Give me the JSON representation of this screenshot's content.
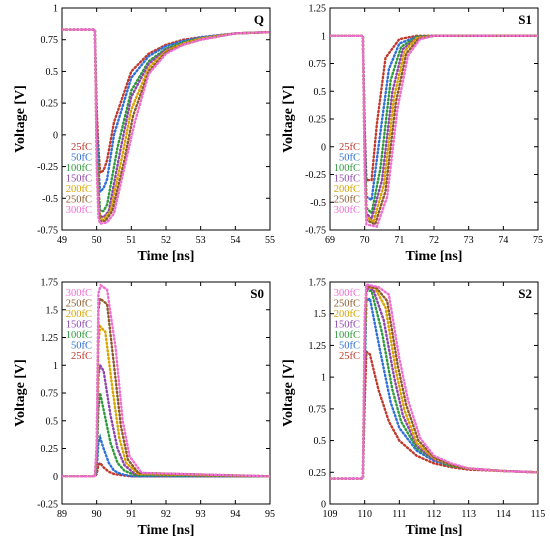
{
  "legend_colors": {
    "25fC": "#c0392b",
    "50fC": "#2e6fd8",
    "100fC": "#2e9a3a",
    "150fC": "#8e44ad",
    "200fC": "#d9a400",
    "250fC": "#8b5a2b",
    "300fC": "#f06ed2"
  },
  "chart_data": [
    {
      "type": "line",
      "panel_label": "Q",
      "xlabel": "Time [ns]",
      "ylabel": "Voltage [V]",
      "xlim": [
        49,
        55
      ],
      "ylim": [
        -0.75,
        1
      ],
      "xticks": [
        "49",
        "50",
        "51",
        "52",
        "53",
        "54",
        "55"
      ],
      "yticks": [
        "-0.75",
        "-0.5",
        "-0.25",
        "0",
        "0.25",
        "0.5",
        "0.75",
        "1"
      ],
      "legend_order": [
        "25fC",
        "50fC",
        "100fC",
        "150fC",
        "200fC",
        "250fC",
        "300fC"
      ],
      "legend_position": "middle-left",
      "series": [
        {
          "name": "25fC",
          "x": [
            49,
            49.95,
            50,
            50.05,
            50.1,
            50.2,
            50.3,
            50.5,
            51,
            51.5,
            52,
            52.5,
            53,
            54,
            55
          ],
          "y": [
            0.83,
            0.83,
            0.2,
            -0.1,
            -0.3,
            -0.28,
            -0.2,
            0.1,
            0.5,
            0.64,
            0.71,
            0.75,
            0.77,
            0.8,
            0.81
          ]
        },
        {
          "name": "50fC",
          "x": [
            49,
            49.95,
            50,
            50.05,
            50.1,
            50.2,
            50.3,
            50.5,
            51,
            51.5,
            52,
            52.5,
            53,
            54,
            55
          ],
          "y": [
            0.83,
            0.83,
            0.1,
            -0.25,
            -0.45,
            -0.42,
            -0.35,
            0.0,
            0.45,
            0.62,
            0.7,
            0.74,
            0.77,
            0.8,
            0.81
          ]
        },
        {
          "name": "100fC",
          "x": [
            49,
            49.95,
            50,
            50.05,
            50.1,
            50.2,
            50.3,
            50.6,
            51,
            51.5,
            52,
            52.5,
            53,
            54,
            55
          ],
          "y": [
            0.83,
            0.83,
            0.0,
            -0.4,
            -0.6,
            -0.6,
            -0.55,
            -0.1,
            0.35,
            0.58,
            0.68,
            0.73,
            0.76,
            0.8,
            0.81
          ]
        },
        {
          "name": "150fC",
          "x": [
            49,
            49.95,
            50,
            50.05,
            50.1,
            50.2,
            50.35,
            50.7,
            51,
            51.5,
            52,
            52.5,
            53,
            54,
            55
          ],
          "y": [
            0.83,
            0.83,
            -0.1,
            -0.5,
            -0.64,
            -0.65,
            -0.6,
            -0.1,
            0.3,
            0.56,
            0.67,
            0.72,
            0.76,
            0.8,
            0.81
          ]
        },
        {
          "name": "200fC",
          "x": [
            49,
            49.95,
            50,
            50.05,
            50.1,
            50.2,
            50.4,
            50.75,
            51,
            51.5,
            52,
            52.5,
            53,
            54,
            55
          ],
          "y": [
            0.83,
            0.83,
            -0.15,
            -0.55,
            -0.66,
            -0.67,
            -0.6,
            -0.15,
            0.2,
            0.53,
            0.66,
            0.72,
            0.76,
            0.8,
            0.81
          ]
        },
        {
          "name": "250fC",
          "x": [
            49,
            49.95,
            50,
            50.05,
            50.1,
            50.25,
            50.45,
            50.8,
            51.05,
            51.5,
            52,
            52.5,
            53,
            54,
            55
          ],
          "y": [
            0.83,
            0.83,
            -0.2,
            -0.6,
            -0.68,
            -0.68,
            -0.6,
            -0.2,
            0.15,
            0.5,
            0.65,
            0.71,
            0.75,
            0.8,
            0.81
          ]
        },
        {
          "name": "300fC",
          "x": [
            49,
            49.95,
            50,
            50.05,
            50.1,
            50.3,
            50.5,
            50.85,
            51.1,
            51.5,
            52,
            52.5,
            53,
            54,
            55
          ],
          "y": [
            0.83,
            0.83,
            -0.25,
            -0.65,
            -0.7,
            -0.69,
            -0.62,
            -0.2,
            0.1,
            0.48,
            0.64,
            0.71,
            0.75,
            0.8,
            0.81
          ]
        }
      ]
    },
    {
      "type": "line",
      "panel_label": "S1",
      "xlabel": "Time [ns]",
      "ylabel": "Voltage [V]",
      "xlim": [
        69,
        75
      ],
      "ylim": [
        -0.75,
        1.25
      ],
      "xticks": [
        "69",
        "70",
        "71",
        "72",
        "73",
        "74",
        "75"
      ],
      "yticks": [
        "-0.75",
        "-0.5",
        "-0.25",
        "0",
        "0.25",
        "0.5",
        "0.75",
        "1",
        "1.25"
      ],
      "legend_order": [
        "25fC",
        "50fC",
        "100fC",
        "150fC",
        "200fC",
        "250fC",
        "300fC"
      ],
      "legend_position": "bottom-left",
      "series": [
        {
          "name": "25fC",
          "x": [
            69,
            69.95,
            70,
            70.05,
            70.2,
            70.35,
            70.6,
            71,
            71.5,
            72,
            75
          ],
          "y": [
            1.0,
            1.0,
            0.2,
            -0.3,
            -0.3,
            0.2,
            0.8,
            0.97,
            1.0,
            1.0,
            1.0
          ]
        },
        {
          "name": "50fC",
          "x": [
            69,
            69.95,
            70,
            70.05,
            70.2,
            70.4,
            70.7,
            71,
            71.5,
            72,
            75
          ],
          "y": [
            1.0,
            1.0,
            0.1,
            -0.45,
            -0.48,
            0.0,
            0.7,
            0.93,
            0.99,
            1.0,
            1.0
          ]
        },
        {
          "name": "100fC",
          "x": [
            69,
            69.95,
            70,
            70.05,
            70.2,
            70.45,
            70.75,
            71.05,
            71.5,
            72,
            75
          ],
          "y": [
            1.0,
            1.0,
            0.0,
            -0.55,
            -0.6,
            -0.2,
            0.6,
            0.9,
            0.99,
            1.0,
            1.0
          ]
        },
        {
          "name": "150fC",
          "x": [
            69,
            69.95,
            70,
            70.05,
            70.2,
            70.5,
            70.8,
            71.1,
            71.5,
            72,
            75
          ],
          "y": [
            1.0,
            1.0,
            -0.1,
            -0.6,
            -0.65,
            -0.3,
            0.5,
            0.88,
            0.98,
            1.0,
            1.0
          ]
        },
        {
          "name": "200fC",
          "x": [
            69,
            69.95,
            70,
            70.05,
            70.25,
            70.55,
            70.85,
            71.15,
            71.5,
            72,
            75
          ],
          "y": [
            1.0,
            1.0,
            -0.15,
            -0.63,
            -0.68,
            -0.35,
            0.45,
            0.86,
            0.98,
            1.0,
            1.0
          ]
        },
        {
          "name": "250fC",
          "x": [
            69,
            69.95,
            70,
            70.05,
            70.3,
            70.6,
            70.9,
            71.2,
            71.55,
            72,
            75
          ],
          "y": [
            1.0,
            1.0,
            -0.2,
            -0.66,
            -0.7,
            -0.4,
            0.4,
            0.84,
            0.97,
            1.0,
            1.0
          ]
        },
        {
          "name": "300fC",
          "x": [
            69,
            69.95,
            70,
            70.05,
            70.35,
            70.65,
            70.95,
            71.25,
            71.6,
            72,
            75
          ],
          "y": [
            1.0,
            1.0,
            -0.25,
            -0.7,
            -0.72,
            -0.45,
            0.35,
            0.82,
            0.97,
            1.0,
            1.0
          ]
        }
      ]
    },
    {
      "type": "line",
      "panel_label": "S0",
      "xlabel": "Time [ns]",
      "ylabel": "Voltage [V]",
      "xlim": [
        89,
        95
      ],
      "ylim": [
        -0.25,
        1.75
      ],
      "xticks": [
        "89",
        "90",
        "91",
        "92",
        "93",
        "94",
        "95"
      ],
      "yticks": [
        "-0.25",
        "0",
        "0.25",
        "0.5",
        "0.75",
        "1",
        "1.25",
        "1.5",
        "1.75"
      ],
      "legend_order": [
        "300fC",
        "250fC",
        "200fC",
        "150fC",
        "100fC",
        "50fC",
        "25fC"
      ],
      "legend_position": "top-left",
      "series": [
        {
          "name": "25fC",
          "x": [
            89,
            89.95,
            90,
            90.05,
            90.1,
            90.2,
            90.35,
            90.5,
            90.7,
            91,
            95
          ],
          "y": [
            0.0,
            0.0,
            0.02,
            0.1,
            0.12,
            0.08,
            0.04,
            0.02,
            0.01,
            0.0,
            0.0
          ]
        },
        {
          "name": "50fC",
          "x": [
            89,
            89.95,
            90,
            90.05,
            90.1,
            90.2,
            90.35,
            90.5,
            90.7,
            91,
            95
          ],
          "y": [
            0.0,
            0.0,
            0.05,
            0.3,
            0.35,
            0.25,
            0.12,
            0.05,
            0.02,
            0.0,
            0.0
          ]
        },
        {
          "name": "100fC",
          "x": [
            89,
            89.95,
            90,
            90.05,
            90.1,
            90.2,
            90.4,
            90.6,
            90.8,
            91.1,
            95
          ],
          "y": [
            0.0,
            0.0,
            0.1,
            0.6,
            0.75,
            0.6,
            0.3,
            0.12,
            0.05,
            0.01,
            0.0
          ]
        },
        {
          "name": "150fC",
          "x": [
            89,
            89.95,
            90,
            90.05,
            90.1,
            90.2,
            90.4,
            90.6,
            90.8,
            91.1,
            95
          ],
          "y": [
            0.0,
            0.0,
            0.15,
            0.9,
            1.0,
            0.95,
            0.55,
            0.25,
            0.1,
            0.02,
            0.0
          ]
        },
        {
          "name": "200fC",
          "x": [
            89,
            89.95,
            90,
            90.05,
            90.1,
            90.25,
            90.45,
            90.65,
            90.85,
            91.2,
            95
          ],
          "y": [
            0.0,
            0.0,
            0.2,
            1.2,
            1.35,
            1.3,
            0.8,
            0.35,
            0.12,
            0.02,
            0.0
          ]
        },
        {
          "name": "250fC",
          "x": [
            89,
            89.95,
            90,
            90.05,
            90.1,
            90.3,
            90.5,
            90.7,
            90.9,
            91.2,
            95
          ],
          "y": [
            0.0,
            0.0,
            0.25,
            1.5,
            1.6,
            1.55,
            1.0,
            0.45,
            0.15,
            0.03,
            0.0
          ]
        },
        {
          "name": "300fC",
          "x": [
            89,
            89.95,
            90,
            90.05,
            90.12,
            90.3,
            90.55,
            90.75,
            90.95,
            91.3,
            95
          ],
          "y": [
            0.0,
            0.0,
            0.3,
            1.65,
            1.72,
            1.68,
            1.15,
            0.5,
            0.18,
            0.03,
            0.0
          ]
        }
      ]
    },
    {
      "type": "line",
      "panel_label": "S2",
      "xlabel": "Time [ns]",
      "ylabel": "Voltage [V]",
      "xlim": [
        109,
        115
      ],
      "ylim": [
        0,
        1.75
      ],
      "xticks": [
        "109",
        "110",
        "111",
        "112",
        "113",
        "114",
        "115"
      ],
      "yticks": [
        "0",
        "0.25",
        "0.5",
        "0.75",
        "1",
        "1.25",
        "1.5",
        "1.75"
      ],
      "legend_order": [
        "300fC",
        "250fC",
        "200fC",
        "150fC",
        "100fC",
        "50fC",
        "25fC"
      ],
      "legend_position": "top-left",
      "series": [
        {
          "name": "25fC",
          "x": [
            109,
            109.95,
            110,
            110.05,
            110.15,
            110.4,
            110.7,
            111,
            111.5,
            112,
            112.5,
            113,
            114,
            115
          ],
          "y": [
            0.2,
            0.2,
            0.8,
            1.2,
            1.18,
            0.9,
            0.65,
            0.5,
            0.38,
            0.32,
            0.29,
            0.27,
            0.26,
            0.25
          ]
        },
        {
          "name": "50fC",
          "x": [
            109,
            109.95,
            110,
            110.05,
            110.15,
            110.45,
            110.75,
            111,
            111.5,
            112,
            112.5,
            113,
            114,
            115
          ],
          "y": [
            0.2,
            0.2,
            1.0,
            1.6,
            1.62,
            1.2,
            0.8,
            0.6,
            0.42,
            0.34,
            0.3,
            0.28,
            0.26,
            0.25
          ]
        },
        {
          "name": "100fC",
          "x": [
            109,
            109.95,
            110,
            110.05,
            110.2,
            110.5,
            110.8,
            111.05,
            111.5,
            112,
            112.5,
            113,
            114,
            115
          ],
          "y": [
            0.2,
            0.2,
            1.1,
            1.68,
            1.68,
            1.35,
            0.9,
            0.65,
            0.44,
            0.35,
            0.3,
            0.28,
            0.26,
            0.25
          ]
        },
        {
          "name": "150fC",
          "x": [
            109,
            109.95,
            110,
            110.05,
            110.25,
            110.55,
            110.85,
            111.1,
            111.5,
            112,
            112.5,
            113,
            114,
            115
          ],
          "y": [
            0.2,
            0.2,
            1.2,
            1.7,
            1.69,
            1.45,
            1.0,
            0.7,
            0.46,
            0.35,
            0.31,
            0.28,
            0.26,
            0.25
          ]
        },
        {
          "name": "200fC",
          "x": [
            109,
            109.95,
            110,
            110.05,
            110.3,
            110.6,
            110.9,
            111.15,
            111.5,
            112,
            112.5,
            113,
            114,
            115
          ],
          "y": [
            0.2,
            0.2,
            1.3,
            1.71,
            1.7,
            1.55,
            1.05,
            0.74,
            0.48,
            0.36,
            0.31,
            0.28,
            0.26,
            0.25
          ]
        },
        {
          "name": "250fC",
          "x": [
            109,
            109.95,
            110,
            110.05,
            110.35,
            110.65,
            110.95,
            111.2,
            111.55,
            112,
            112.5,
            113,
            114,
            115
          ],
          "y": [
            0.2,
            0.2,
            1.4,
            1.72,
            1.7,
            1.6,
            1.1,
            0.78,
            0.5,
            0.37,
            0.31,
            0.28,
            0.26,
            0.25
          ]
        },
        {
          "name": "300fC",
          "x": [
            109,
            109.95,
            110,
            110.05,
            110.4,
            110.7,
            111.0,
            111.25,
            111.6,
            112,
            112.5,
            113,
            114,
            115
          ],
          "y": [
            0.2,
            0.2,
            1.5,
            1.73,
            1.71,
            1.65,
            1.15,
            0.82,
            0.52,
            0.38,
            0.32,
            0.28,
            0.26,
            0.25
          ]
        }
      ]
    }
  ]
}
